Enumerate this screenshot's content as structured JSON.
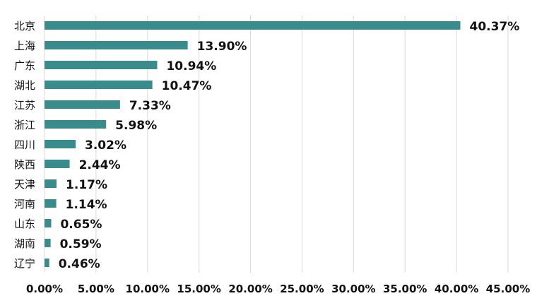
{
  "chart_data": {
    "type": "bar",
    "orientation": "horizontal",
    "categories": [
      "北京",
      "上海",
      "广东",
      "湖北",
      "江苏",
      "浙江",
      "四川",
      "陕西",
      "天津",
      "河南",
      "山东",
      "湖南",
      "辽宁"
    ],
    "values": [
      40.37,
      13.9,
      10.94,
      10.47,
      7.33,
      5.98,
      3.02,
      2.44,
      1.17,
      1.14,
      0.65,
      0.59,
      0.46
    ],
    "value_labels": [
      "40.37%",
      "13.90%",
      "10.94%",
      "10.47%",
      "7.33%",
      "5.98%",
      "3.02%",
      "2.44%",
      "1.17%",
      "1.14%",
      "0.65%",
      "0.59%",
      "0.46%"
    ],
    "x_ticks": [
      0,
      5,
      10,
      15,
      20,
      25,
      30,
      35,
      40,
      45
    ],
    "x_tick_labels": [
      "0.00%",
      "5.00%",
      "10.00%",
      "15.00%",
      "20.00%",
      "25.00%",
      "30.00%",
      "35.00%",
      "40.00%",
      "45.00%"
    ],
    "xlim": [
      0,
      45
    ],
    "title": "",
    "xlabel": "",
    "ylabel": "",
    "grid": "vertical",
    "legend": "none",
    "bar_color": "#3a8c8c",
    "grid_color": "#d9d9d9"
  }
}
